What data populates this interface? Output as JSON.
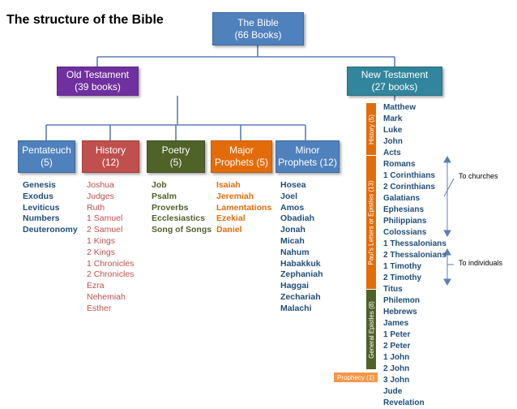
{
  "title": "The structure of the Bible",
  "root": {
    "line1": "The Bible",
    "line2": "(66 Books)"
  },
  "old_testament": {
    "line1": "Old Testament",
    "line2": "(39 books)"
  },
  "new_testament": {
    "line1": "New Testament",
    "line2": "(27 books)"
  },
  "categories": [
    {
      "line1": "Pentateuch",
      "line2": "(5)"
    },
    {
      "line1": "History",
      "line2": "(12)"
    },
    {
      "line1": "Poetry",
      "line2": "(5)"
    },
    {
      "line1": "Major",
      "line2": "Prophets (5)"
    },
    {
      "line1": "Minor",
      "line2": "Prophets (12)"
    }
  ],
  "books": {
    "pentateuch": [
      "Genesis",
      "Exodus",
      "Leviticus",
      "Numbers",
      "Deuteronomy"
    ],
    "history": [
      "Joshua",
      "Judges",
      "Ruth",
      "1 Samuel",
      "2 Samuel",
      "1 Kings",
      "2 Kings",
      "1 Chronicles",
      "2 Chronicles",
      "Ezra",
      "Nehemiah",
      "Esther"
    ],
    "poetry": [
      "Job",
      "Psalm",
      "Proverbs",
      "Ecclesiastics",
      "Song of Songs"
    ],
    "major_prophets": [
      "Isaiah",
      "Jeremiah",
      "Lamentations",
      "Ezekial",
      "Daniel"
    ],
    "minor_prophets": [
      "Hosea",
      "Joel",
      "Amos",
      "Obadiah",
      "Jonah",
      "Micah",
      "Nahum",
      "Habakkuk",
      "Zephaniah",
      "Haggai",
      "Zechariah",
      "Malachi"
    ]
  },
  "new_testament_books": [
    "Matthew",
    "Mark",
    "Luke",
    "John",
    "Acts",
    "Romans",
    "1 Corinthians",
    "2 Corinthians",
    "Galatians",
    "Ephesians",
    "Philippians",
    "Colossians",
    "1 Thessalonians",
    "2 Thessalonians",
    "1 Timothy",
    "2 Timothy",
    "Titus",
    "Philemon",
    "Hebrews",
    "James",
    "1 Peter",
    "2 Peter",
    "1 John",
    "2 John",
    "3 John",
    "Jude",
    "Revelation"
  ],
  "nt_groups": {
    "history": "History (5)",
    "pauls_letters": "Paul's Letters or Epistles (13)",
    "general_epistles": "General Epistles (8)",
    "prophecy": "Prophecy (1)"
  },
  "notes": {
    "to_churches": "To churches",
    "to_individuals": "To individuals"
  },
  "colors": {
    "blue_box": "#4f81bd",
    "old_testament_box": "#7030a0",
    "major_prophets_box": "#e36c0a",
    "history_box": "#c0504d",
    "poetry_box": "#4f6228"
  }
}
